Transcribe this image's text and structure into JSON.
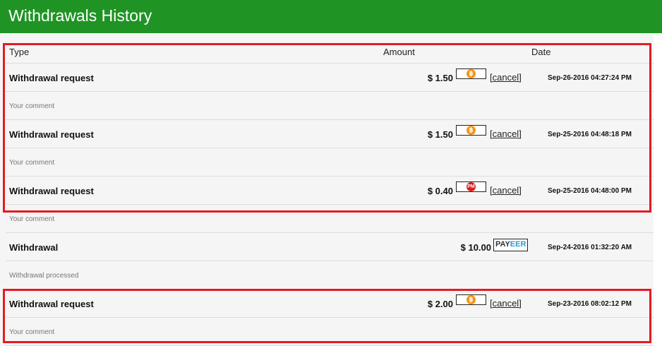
{
  "header": {
    "title": "Withdrawals History"
  },
  "columns": {
    "type": "Type",
    "amount": "Amount",
    "date": "Date"
  },
  "entries": [
    {
      "type": "Withdrawal request",
      "amount": "$ 1.50",
      "method": "bitcoin-icon",
      "action": "[cancel]",
      "date": "Sep-26-2016 04:27:24 PM",
      "comment": "Your comment"
    },
    {
      "type": "Withdrawal request",
      "amount": "$ 1.50",
      "method": "bitcoin-icon",
      "action": "[cancel]",
      "date": "Sep-25-2016 04:48:18 PM",
      "comment": "Your comment"
    },
    {
      "type": "Withdrawal request",
      "amount": "$ 0.40",
      "method": "perfect-money-icon",
      "method_text": "PM",
      "action": "[cancel]",
      "date": "Sep-25-2016 04:48:00 PM",
      "comment": "Your comment"
    },
    {
      "type": "Withdrawal",
      "amount": "$ 10.00",
      "method": "payeer-logo",
      "method_text_a": "PAY",
      "method_text_b": "EER",
      "date": "Sep-24-2016 01:32:20 AM",
      "comment": "Withdrawal processed"
    },
    {
      "type": "Withdrawal request",
      "amount": "$ 2.00",
      "method": "bitcoin-icon",
      "action": "[cancel]",
      "date": "Sep-23-2016 08:02:12 PM",
      "comment": "Your comment"
    }
  ],
  "colors": {
    "header": "#1f9424",
    "highlight": "#e41b23",
    "bitcoin": "#f7931a",
    "pm": "#d9201f"
  }
}
